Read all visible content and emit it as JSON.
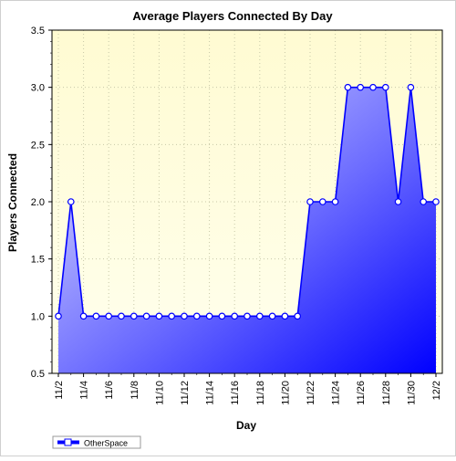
{
  "chart_data": {
    "type": "area",
    "title": "Average Players Connected By Day",
    "xlabel": "Day",
    "ylabel": "Players Connected",
    "ylim": [
      0.5,
      3.5
    ],
    "yticks": [
      "0.5",
      "1.0",
      "1.5",
      "2.0",
      "2.5",
      "3.0",
      "3.5"
    ],
    "x": [
      "11/2",
      "11/3",
      "11/4",
      "11/5",
      "11/6",
      "11/7",
      "11/8",
      "11/9",
      "11/10",
      "11/11",
      "11/12",
      "11/13",
      "11/14",
      "11/15",
      "11/16",
      "11/17",
      "11/18",
      "11/19",
      "11/20",
      "11/21",
      "11/22",
      "11/23",
      "11/24",
      "11/25",
      "11/26",
      "11/27",
      "11/28",
      "11/29",
      "11/30",
      "12/1",
      "12/2"
    ],
    "xtick_labels": [
      "11/2",
      "11/4",
      "11/6",
      "11/8",
      "11/10",
      "11/12",
      "11/14",
      "11/16",
      "11/18",
      "11/20",
      "11/22",
      "11/24",
      "11/26",
      "11/28",
      "11/30",
      "12/2"
    ],
    "series": [
      {
        "name": "OtherSpace",
        "color": "#0000ff",
        "values": [
          1,
          2,
          1,
          1,
          1,
          1,
          1,
          1,
          1,
          1,
          1,
          1,
          1,
          1,
          1,
          1,
          1,
          1,
          1,
          1,
          2,
          2,
          2,
          3,
          3,
          3,
          3,
          2,
          3,
          2,
          2
        ]
      }
    ],
    "grid": true,
    "legend_position": "bottom-left",
    "plot_background": "#ffffe0"
  }
}
